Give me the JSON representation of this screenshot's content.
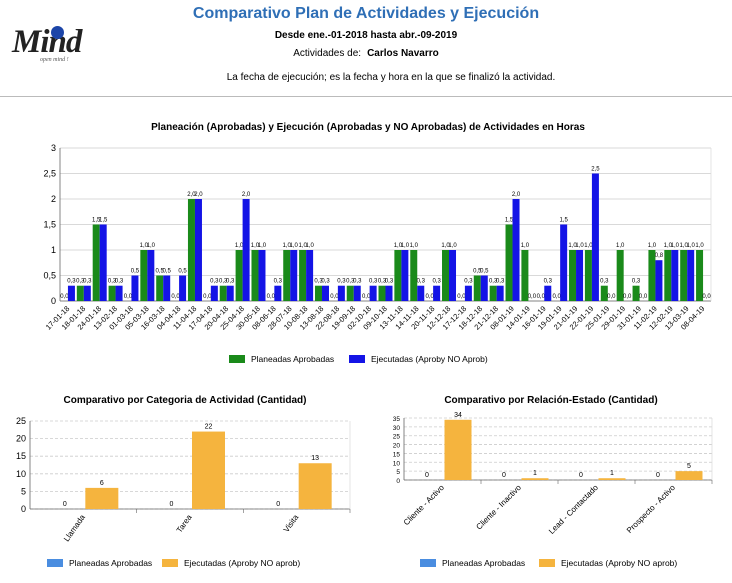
{
  "header": {
    "logo_text": "Mind",
    "logo_tagline": "open mind !",
    "title": "Comparativo Plan de Actividades y Ejecución",
    "date_range": "Desde ene.-01-2018 hasta abr.-09-2019",
    "activity_label": "Actividades de:",
    "activity_person": "Carlos Navarro",
    "note": "La fecha de ejecución; es la fecha y hora en la que se finalizó la actividad."
  },
  "colors": {
    "planned": "#1a8a1a",
    "executed": "#1414e6",
    "planned2": "#4a8de0",
    "executed2": "#f5b43e"
  },
  "chart_data": [
    {
      "type": "bar",
      "title": "Planeación (Aprobadas) y Ejecución (Aprobadas y NO Aprobadas) de Actividades en Horas",
      "categories": [
        "17-01-18",
        "18-01-18",
        "24-01-18",
        "13-02-18",
        "01-03-18",
        "05-03-18",
        "16-03-18",
        "04-04-18",
        "11-04-18",
        "17-04-18",
        "20-04-18",
        "25-04-18",
        "30-05-18",
        "08-06-18",
        "28-07-18",
        "10-08-18",
        "13-08-18",
        "22-08-18",
        "19-09-18",
        "02-10-18",
        "09-10-18",
        "13-11-18",
        "14-11-18",
        "20-11-18",
        "12-12-18",
        "17-12-18",
        "18-12-18",
        "21-12-18",
        "08-01-19",
        "14-01-19",
        "16-01-19",
        "19-01-19",
        "21-01-19",
        "22-01-19",
        "25-01-19",
        "29-01-19",
        "31-01-19",
        "11-02-19",
        "12-02-19",
        "13-03-19",
        "08-04-19"
      ],
      "series": [
        {
          "name": "Planeadas Aprobadas",
          "values": [
            0.0,
            0.3,
            1.5,
            0.3,
            0.0,
            1.0,
            0.5,
            0.0,
            2.0,
            0.0,
            0.3,
            1.0,
            1.0,
            0.0,
            1.0,
            1.0,
            0.3,
            0.0,
            0.3,
            0.0,
            0.3,
            1.0,
            1.0,
            0.0,
            1.0,
            0.0,
            0.5,
            0.3,
            1.5,
            1.0,
            0.0,
            0.0,
            1.0,
            1.0,
            0.3,
            1.0,
            0.3,
            1.0,
            1.0,
            1.0,
            1.0
          ]
        },
        {
          "name": "Ejecutadas (Aproby NO Aprob)",
          "values": [
            0.3,
            0.3,
            1.5,
            0.3,
            0.5,
            1.0,
            0.5,
            0.5,
            2.0,
            0.3,
            0.3,
            2.0,
            1.0,
            0.3,
            1.0,
            1.0,
            0.3,
            0.3,
            0.3,
            0.3,
            0.3,
            1.0,
            0.3,
            0.3,
            1.0,
            0.3,
            0.5,
            0.3,
            2.0,
            0.0,
            0.3,
            1.5,
            1.0,
            2.5,
            0.0,
            0.0,
            0.0,
            0.8,
            1.0,
            1.0,
            0.0
          ]
        }
      ],
      "ylim": [
        0,
        3
      ],
      "yticks": [
        "0",
        "0,5",
        "1",
        "1,5",
        "2",
        "2,5",
        "3"
      ]
    },
    {
      "type": "bar",
      "title": "Comparativo por Categoria de Actividad (Cantidad)",
      "categories": [
        "Llamada",
        "Tarea",
        "Visita"
      ],
      "series": [
        {
          "name": "Planeadas Aprobadas",
          "values": [
            0,
            0,
            0
          ]
        },
        {
          "name": "Ejecutadas (Aproby NO aprob)",
          "values": [
            6,
            22,
            13
          ]
        }
      ],
      "ylim": [
        0,
        25
      ],
      "yticks": [
        "0",
        "5",
        "10",
        "15",
        "20",
        "25"
      ]
    },
    {
      "type": "bar",
      "title": "Comparativo por Relación-Estado (Cantidad)",
      "categories": [
        "Cliente - Activo",
        "Cliente - Inactivo",
        "Lead - Contactado",
        "Prospecto - Activo"
      ],
      "series": [
        {
          "name": "Planeadas Aprobadas",
          "values": [
            0,
            0,
            0,
            0
          ]
        },
        {
          "name": "Ejecutadas (Aproby NO aprob)",
          "values": [
            34,
            1,
            1,
            5
          ]
        }
      ],
      "ylim": [
        0,
        35
      ],
      "yticks": [
        "0",
        "5",
        "10",
        "15",
        "20",
        "25",
        "30",
        "35"
      ]
    }
  ]
}
